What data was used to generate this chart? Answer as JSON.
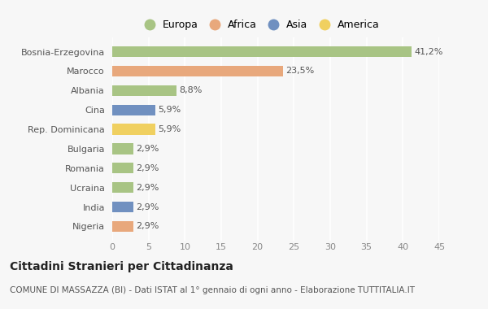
{
  "countries": [
    "Bosnia-Erzegovina",
    "Marocco",
    "Albania",
    "Cina",
    "Rep. Dominicana",
    "Bulgaria",
    "Romania",
    "Ucraina",
    "India",
    "Nigeria"
  ],
  "values": [
    41.2,
    23.5,
    8.8,
    5.9,
    5.9,
    2.9,
    2.9,
    2.9,
    2.9,
    2.9
  ],
  "labels": [
    "41,2%",
    "23,5%",
    "8,8%",
    "5,9%",
    "5,9%",
    "2,9%",
    "2,9%",
    "2,9%",
    "2,9%",
    "2,9%"
  ],
  "colors": [
    "#a8c484",
    "#e8a87c",
    "#a8c484",
    "#7090c0",
    "#f0d060",
    "#a8c484",
    "#a8c484",
    "#a8c484",
    "#7090c0",
    "#e8a87c"
  ],
  "legend": {
    "Europa": "#a8c484",
    "Africa": "#e8a87c",
    "Asia": "#7090c0",
    "America": "#f0d060"
  },
  "title": "Cittadini Stranieri per Cittadinanza",
  "subtitle": "COMUNE DI MASSAZZA (BI) - Dati ISTAT al 1° gennaio di ogni anno - Elaborazione TUTTITALIA.IT",
  "xlim": [
    0,
    45
  ],
  "xticks": [
    0,
    5,
    10,
    15,
    20,
    25,
    30,
    35,
    40,
    45
  ],
  "background_color": "#f7f7f7",
  "bar_height": 0.55,
  "title_fontsize": 10,
  "subtitle_fontsize": 7.5,
  "tick_fontsize": 8,
  "label_fontsize": 8,
  "legend_fontsize": 9
}
